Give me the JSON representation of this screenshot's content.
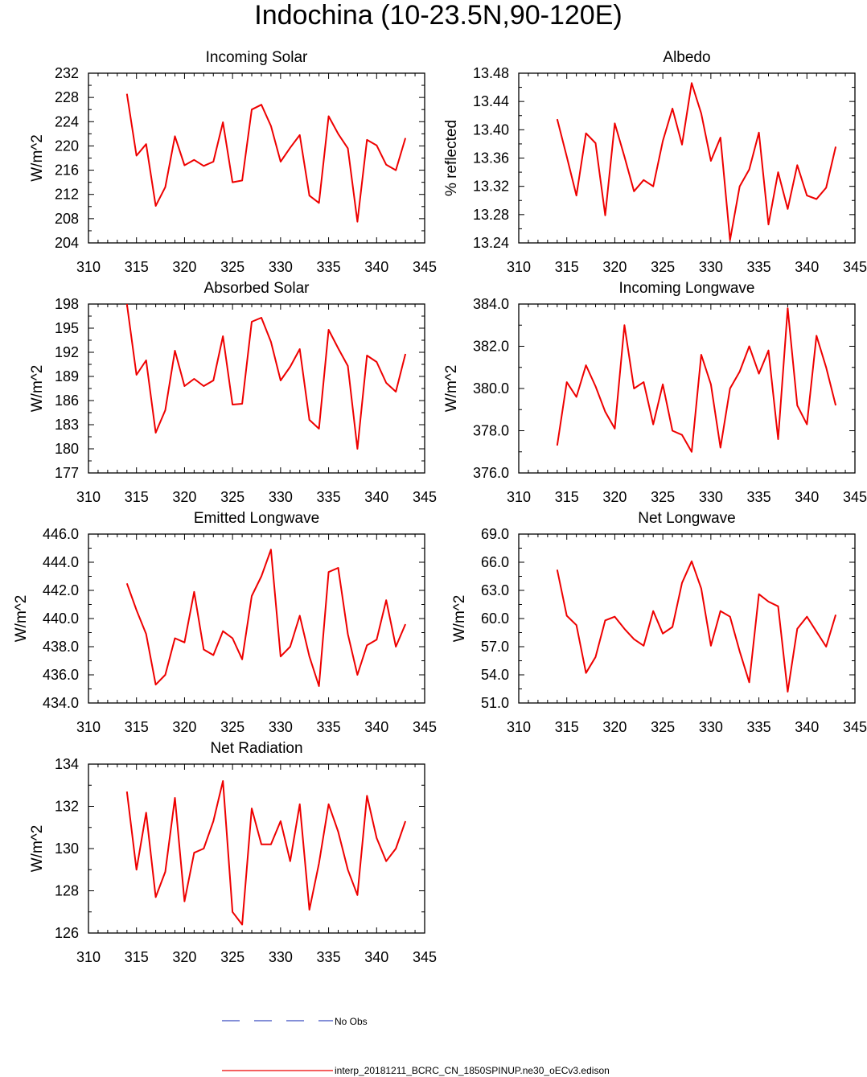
{
  "figure": {
    "title": "Indochina (10-23.5N,90-120E)",
    "legend": {
      "obs_label": "No Obs",
      "obs_color": "#3b4cc0",
      "model_label": "interp_20181211_BCRC_CN_1850SPINUP.ne30_oECv3.edison",
      "model_color": "#ee0000"
    }
  },
  "chart_data": [
    {
      "type": "line",
      "title": "Incoming Solar",
      "ylabel": "W/m^2",
      "xlim": [
        310,
        345
      ],
      "xticks": [
        "310",
        "315",
        "320",
        "325",
        "330",
        "335",
        "340",
        "345"
      ],
      "ylim": [
        204,
        232
      ],
      "yticks": [
        "204",
        "208",
        "212",
        "216",
        "220",
        "224",
        "228",
        "232"
      ],
      "x": [
        314,
        315,
        316,
        317,
        318,
        319,
        320,
        321,
        322,
        323,
        324,
        325,
        326,
        327,
        328,
        329,
        330,
        331,
        332,
        333,
        334,
        335,
        336,
        337,
        338,
        339,
        340,
        341,
        342,
        343
      ],
      "series": [
        {
          "name": "interp_20181211_BCRC_CN_1850SPINUP.ne30_oECv3.edison",
          "values": [
            228.6,
            218.4,
            220.3,
            210.1,
            213.2,
            221.6,
            216.8,
            217.7,
            216.7,
            217.4,
            223.9,
            214.0,
            214.3,
            226.0,
            226.8,
            223.3,
            217.4,
            219.7,
            221.8,
            211.8,
            210.6,
            224.9,
            222.0,
            219.6,
            207.5,
            221.0,
            220.1,
            216.9,
            216.0,
            221.3
          ]
        }
      ]
    },
    {
      "type": "line",
      "title": "Albedo",
      "ylabel": "% reflected",
      "xlim": [
        310,
        345
      ],
      "xticks": [
        "310",
        "315",
        "320",
        "325",
        "330",
        "335",
        "340",
        "345"
      ],
      "ylim": [
        13.24,
        13.48
      ],
      "yticks": [
        "13.24",
        "13.28",
        "13.32",
        "13.36",
        "13.40",
        "13.44",
        "13.48"
      ],
      "x": [
        314,
        315,
        316,
        317,
        318,
        319,
        320,
        321,
        322,
        323,
        324,
        325,
        326,
        327,
        328,
        329,
        330,
        331,
        332,
        333,
        334,
        335,
        336,
        337,
        338,
        339,
        340,
        341,
        342,
        343
      ],
      "series": [
        {
          "name": "interp_20181211_BCRC_CN_1850SPINUP.ne30_oECv3.edison",
          "values": [
            13.415,
            13.362,
            13.307,
            13.395,
            13.381,
            13.279,
            13.409,
            13.362,
            13.313,
            13.329,
            13.32,
            13.384,
            13.43,
            13.379,
            13.466,
            13.423,
            13.356,
            13.389,
            13.244,
            13.32,
            13.344,
            13.396,
            13.266,
            13.34,
            13.288,
            13.35,
            13.307,
            13.302,
            13.318,
            13.376
          ]
        }
      ]
    },
    {
      "type": "line",
      "title": "Absorbed Solar",
      "ylabel": "W/m^2",
      "xlim": [
        310,
        345
      ],
      "xticks": [
        "310",
        "315",
        "320",
        "325",
        "330",
        "335",
        "340",
        "345"
      ],
      "ylim": [
        177,
        198
      ],
      "yticks": [
        "177",
        "180",
        "183",
        "186",
        "189",
        "192",
        "195",
        "198"
      ],
      "x": [
        314,
        315,
        316,
        317,
        318,
        319,
        320,
        321,
        322,
        323,
        324,
        325,
        326,
        327,
        328,
        329,
        330,
        331,
        332,
        333,
        334,
        335,
        336,
        337,
        338,
        339,
        340,
        341,
        342,
        343
      ],
      "series": [
        {
          "name": "interp_20181211_BCRC_CN_1850SPINUP.ne30_oECv3.edison",
          "values": [
            198.0,
            189.2,
            191.0,
            182.0,
            184.8,
            192.2,
            187.8,
            188.7,
            187.8,
            188.5,
            194.0,
            185.5,
            185.6,
            195.8,
            196.3,
            193.3,
            188.5,
            190.2,
            192.4,
            183.6,
            182.5,
            194.8,
            192.5,
            190.3,
            180.0,
            191.6,
            190.8,
            188.2,
            187.1,
            191.8
          ]
        }
      ]
    },
    {
      "type": "line",
      "title": "Incoming Longwave",
      "ylabel": "W/m^2",
      "xlim": [
        310,
        345
      ],
      "xticks": [
        "310",
        "315",
        "320",
        "325",
        "330",
        "335",
        "340",
        "345"
      ],
      "ylim": [
        376.0,
        384.0
      ],
      "yticks": [
        "376.0",
        "378.0",
        "380.0",
        "382.0",
        "384.0"
      ],
      "x": [
        314,
        315,
        316,
        317,
        318,
        319,
        320,
        321,
        322,
        323,
        324,
        325,
        326,
        327,
        328,
        329,
        330,
        331,
        332,
        333,
        334,
        335,
        336,
        337,
        338,
        339,
        340,
        341,
        342,
        343
      ],
      "series": [
        {
          "name": "interp_20181211_BCRC_CN_1850SPINUP.ne30_oECv3.edison",
          "values": [
            377.3,
            380.3,
            379.6,
            381.1,
            380.1,
            378.9,
            378.1,
            383.0,
            380.0,
            380.3,
            378.3,
            380.2,
            378.0,
            377.8,
            377.0,
            381.6,
            380.2,
            377.2,
            380.0,
            380.8,
            382.0,
            380.7,
            381.8,
            377.6,
            383.8,
            379.2,
            378.3,
            382.5,
            381.0,
            379.2
          ]
        }
      ]
    },
    {
      "type": "line",
      "title": "Emitted Longwave",
      "ylabel": "W/m^2",
      "xlim": [
        310,
        345
      ],
      "xticks": [
        "310",
        "315",
        "320",
        "325",
        "330",
        "335",
        "340",
        "345"
      ],
      "ylim": [
        434.0,
        446.0
      ],
      "yticks": [
        "434.0",
        "436.0",
        "438.0",
        "440.0",
        "442.0",
        "444.0",
        "446.0"
      ],
      "x": [
        314,
        315,
        316,
        317,
        318,
        319,
        320,
        321,
        322,
        323,
        324,
        325,
        326,
        327,
        328,
        329,
        330,
        331,
        332,
        333,
        334,
        335,
        336,
        337,
        338,
        339,
        340,
        341,
        342,
        343
      ],
      "series": [
        {
          "name": "interp_20181211_BCRC_CN_1850SPINUP.ne30_oECv3.edison",
          "values": [
            442.5,
            440.6,
            438.9,
            435.3,
            436.0,
            438.6,
            438.3,
            441.9,
            437.8,
            437.4,
            439.1,
            438.6,
            437.1,
            441.6,
            443.0,
            444.9,
            437.3,
            438.0,
            440.2,
            437.3,
            435.2,
            443.3,
            443.6,
            438.9,
            436.0,
            438.1,
            438.5,
            441.3,
            438.0,
            439.6
          ]
        }
      ]
    },
    {
      "type": "line",
      "title": "Net Longwave",
      "ylabel": "W/m^2",
      "xlim": [
        310,
        345
      ],
      "xticks": [
        "310",
        "315",
        "320",
        "325",
        "330",
        "335",
        "340",
        "345"
      ],
      "ylim": [
        51.0,
        69.0
      ],
      "yticks": [
        "51.0",
        "54.0",
        "57.0",
        "60.0",
        "63.0",
        "66.0",
        "69.0"
      ],
      "x": [
        314,
        315,
        316,
        317,
        318,
        319,
        320,
        321,
        322,
        323,
        324,
        325,
        326,
        327,
        328,
        329,
        330,
        331,
        332,
        333,
        334,
        335,
        336,
        337,
        338,
        339,
        340,
        341,
        342,
        343
      ],
      "series": [
        {
          "name": "interp_20181211_BCRC_CN_1850SPINUP.ne30_oECv3.edison",
          "values": [
            65.2,
            60.3,
            59.3,
            54.2,
            55.9,
            59.8,
            60.2,
            58.9,
            57.8,
            57.1,
            60.8,
            58.4,
            59.1,
            63.8,
            66.1,
            63.2,
            57.1,
            60.8,
            60.2,
            56.5,
            53.2,
            62.6,
            61.8,
            61.3,
            52.2,
            58.9,
            60.2,
            58.6,
            57.0,
            60.4
          ]
        }
      ]
    },
    {
      "type": "line",
      "title": "Net Radiation",
      "ylabel": "W/m^2",
      "xlim": [
        310,
        345
      ],
      "xticks": [
        "310",
        "315",
        "320",
        "325",
        "330",
        "335",
        "340",
        "345"
      ],
      "ylim": [
        126,
        134
      ],
      "yticks": [
        "126",
        "128",
        "130",
        "132",
        "134"
      ],
      "x": [
        314,
        315,
        316,
        317,
        318,
        319,
        320,
        321,
        322,
        323,
        324,
        325,
        326,
        327,
        328,
        329,
        330,
        331,
        332,
        333,
        334,
        335,
        336,
        337,
        338,
        339,
        340,
        341,
        342,
        343
      ],
      "series": [
        {
          "name": "interp_20181211_BCRC_CN_1850SPINUP.ne30_oECv3.edison",
          "values": [
            132.7,
            129.0,
            131.7,
            127.7,
            128.9,
            132.4,
            127.5,
            129.8,
            130.0,
            131.3,
            133.2,
            127.0,
            126.4,
            131.9,
            130.2,
            130.2,
            131.3,
            129.4,
            132.1,
            127.1,
            129.3,
            132.1,
            130.8,
            129.0,
            127.8,
            132.5,
            130.5,
            129.4,
            130.0,
            131.3
          ]
        }
      ]
    }
  ]
}
